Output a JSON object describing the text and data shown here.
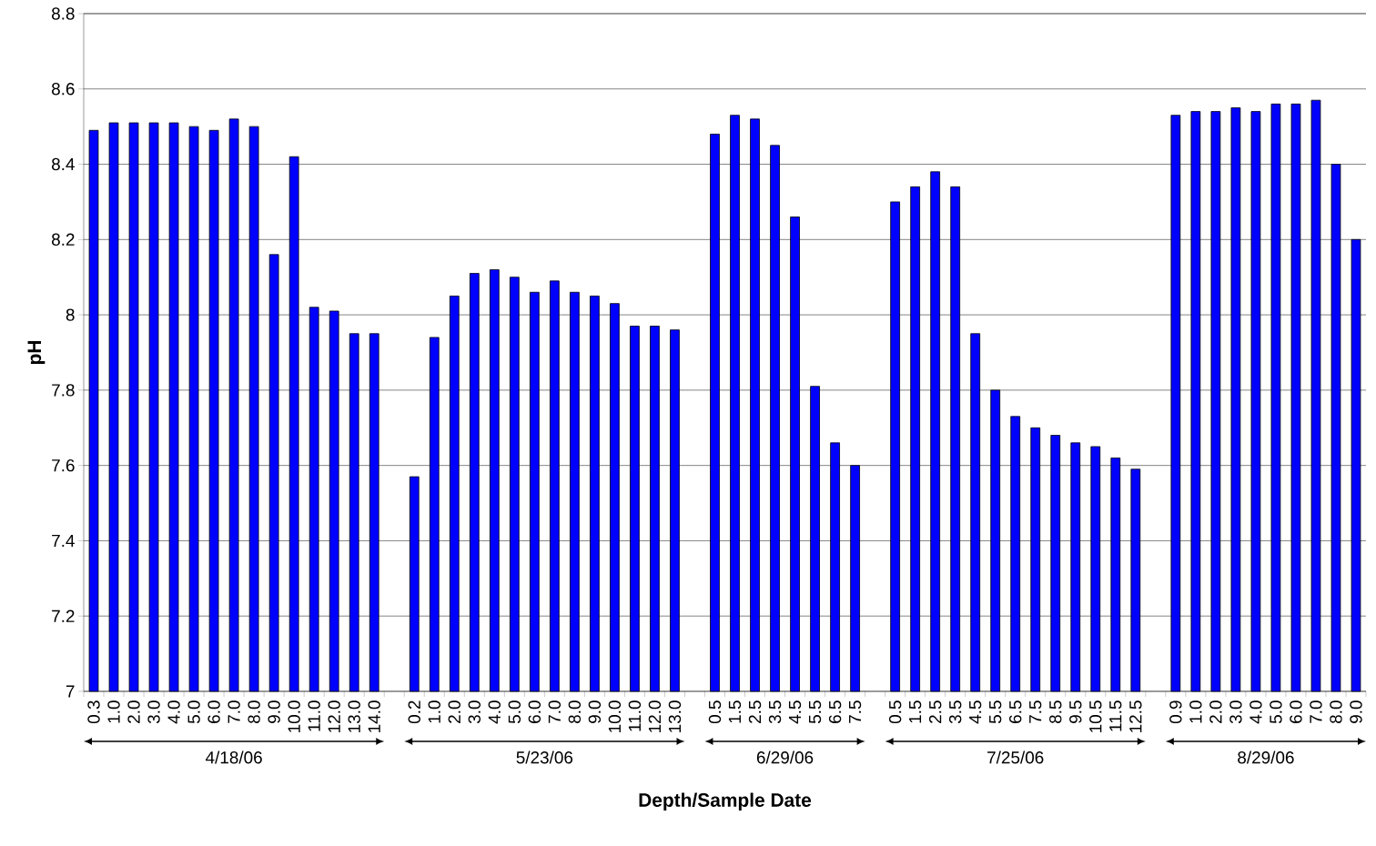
{
  "chart_data": {
    "type": "bar",
    "xlabel": "Depth/Sample Date",
    "ylabel": "pH",
    "categories": [
      "0.3",
      "1.0",
      "2.0",
      "3.0",
      "4.0",
      "5.0",
      "6.0",
      "7.0",
      "8.0",
      "9.0",
      "10.0",
      "11.0",
      "12.0",
      "13.0",
      "14.0",
      null,
      "0.2",
      "1.0",
      "2.0",
      "3.0",
      "4.0",
      "5.0",
      "6.0",
      "7.0",
      "8.0",
      "9.0",
      "10.0",
      "11.0",
      "12.0",
      "13.0",
      null,
      "0.5",
      "1.5",
      "2.5",
      "3.5",
      "4.5",
      "5.5",
      "6.5",
      "7.5",
      null,
      "0.5",
      "1.5",
      "2.5",
      "3.5",
      "4.5",
      "5.5",
      "6.5",
      "7.5",
      "8.5",
      "9.5",
      "10.5",
      "11.5",
      "12.5",
      null,
      "0.9",
      "1.0",
      "2.0",
      "3.0",
      "4.0",
      "5.0",
      "6.0",
      "7.0",
      "8.0",
      "9.0"
    ],
    "values": [
      8.49,
      8.51,
      8.51,
      8.51,
      8.51,
      8.5,
      8.49,
      8.52,
      8.5,
      8.16,
      8.42,
      8.02,
      8.01,
      7.95,
      7.95,
      null,
      7.57,
      7.94,
      8.05,
      8.11,
      8.12,
      8.1,
      8.06,
      8.09,
      8.06,
      8.05,
      8.03,
      7.97,
      7.97,
      7.96,
      null,
      8.48,
      8.53,
      8.52,
      8.45,
      8.26,
      7.81,
      7.66,
      7.6,
      null,
      8.3,
      8.34,
      8.38,
      8.34,
      7.95,
      7.8,
      7.73,
      7.7,
      7.68,
      7.66,
      7.65,
      7.62,
      7.59,
      null,
      8.53,
      8.54,
      8.54,
      8.55,
      8.54,
      8.56,
      8.56,
      8.57,
      8.4,
      8.2
    ],
    "color": "#0000ff",
    "ylim": [
      7,
      8.8
    ],
    "yticks": [
      7,
      {
        "value": 7.2,
        "label": "7.2"
      },
      {
        "value": 7.4,
        "label": "7.4"
      },
      {
        "value": 7.6,
        "label": "7.6"
      },
      {
        "value": 7.8,
        "label": "7.8"
      },
      8,
      {
        "value": 8.2,
        "label": "8.2"
      },
      {
        "value": 8.4,
        "label": "8.4"
      },
      {
        "value": 8.6,
        "label": "8.6"
      },
      {
        "value": 8.8,
        "label": "8.8"
      }
    ],
    "grid": "y",
    "annotations": [
      "4/18/06",
      "5/23/06",
      "6/29/06",
      "7/25/06",
      "8/29/06"
    ]
  }
}
